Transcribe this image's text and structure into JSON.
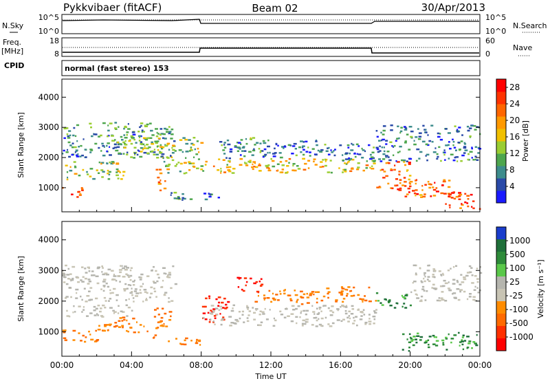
{
  "header": {
    "radar": "Pykkvibaer (fitACF)",
    "beam": "Beam 02",
    "date": "30/Apr/2013"
  },
  "nsky_panel": {
    "left_label": "N.Sky",
    "left_ticks": [
      "10^5",
      "10^0"
    ],
    "right_label": "N.Search",
    "right_ticks": [
      "10^5",
      "10^0"
    ]
  },
  "freq_panel": {
    "left_label_1": "Freq.",
    "left_label_2": "[MHz]",
    "left_ticks": [
      "18",
      "8"
    ],
    "right_label": "Nave",
    "right_ticks": [
      "60",
      "0"
    ]
  },
  "cpid": {
    "label": "CPID",
    "value": "normal (fast stereo) 153"
  },
  "colors": {
    "power_scale": [
      "#1a1aff",
      "#2a4aa8",
      "#3d8c8c",
      "#4ea64e",
      "#9acd32",
      "#f0c000",
      "#ff9900",
      "#ff6600",
      "#ff3300",
      "#ff0000"
    ],
    "velocity_scale": [
      "#1a3dcc",
      "#1f6f3a",
      "#2e8b3a",
      "#5ac84a",
      "#b5b5ae",
      "#c8c4b4",
      "#ff8c00",
      "#ff6a00",
      "#ff3000",
      "#ff0000"
    ]
  },
  "chart_data": [
    {
      "type": "heatmap",
      "name": "power",
      "ylabel": "Slant Range [km]",
      "yticks": [
        "1000",
        "2000",
        "3000",
        "4000"
      ],
      "ylim": [
        200,
        4600
      ],
      "xlim": [
        0,
        24
      ],
      "xticks": [
        "00:00",
        "04:00",
        "08:00",
        "12:00",
        "16:00",
        "20:00",
        "00:00"
      ],
      "colorbar": {
        "label": "Power [dB]",
        "ticks": [
          "4",
          "8",
          "12",
          "16",
          "20",
          "24",
          "28"
        ],
        "range": [
          0,
          30
        ]
      },
      "regions": [
        {
          "t0": 0.0,
          "t1": 1.2,
          "r0": 700,
          "r1": 1050,
          "level": 0.85
        },
        {
          "t0": 0.0,
          "t1": 3.5,
          "r0": 1300,
          "r1": 1900,
          "level": 0.45
        },
        {
          "t0": 0.0,
          "t1": 6.5,
          "r0": 2000,
          "r1": 3200,
          "level": 0.25
        },
        {
          "t0": 3.0,
          "t1": 5.5,
          "r0": 2100,
          "r1": 2800,
          "level": 0.35
        },
        {
          "t0": 5.3,
          "t1": 5.9,
          "r0": 900,
          "r1": 1700,
          "level": 0.8
        },
        {
          "t0": 5.5,
          "t1": 8.0,
          "r0": 1500,
          "r1": 2700,
          "level": 0.45
        },
        {
          "t0": 6.0,
          "t1": 9.0,
          "r0": 600,
          "r1": 900,
          "level": 0.2
        },
        {
          "t0": 8.0,
          "t1": 18.0,
          "r0": 1500,
          "r1": 2000,
          "level": 0.55
        },
        {
          "t0": 10.0,
          "t1": 11.5,
          "r0": 2200,
          "r1": 2700,
          "level": 0.3
        },
        {
          "t0": 9.0,
          "t1": 15.0,
          "r0": 2000,
          "r1": 2600,
          "level": 0.18
        },
        {
          "t0": 15.0,
          "t1": 18.5,
          "r0": 1900,
          "r1": 2500,
          "level": 0.2
        },
        {
          "t0": 18.0,
          "t1": 20.0,
          "r0": 1000,
          "r1": 1900,
          "level": 0.75
        },
        {
          "t0": 18.0,
          "t1": 24.0,
          "r0": 1900,
          "r1": 3100,
          "level": 0.2
        },
        {
          "t0": 19.0,
          "t1": 22.5,
          "r0": 700,
          "r1": 1300,
          "level": 0.8
        },
        {
          "t0": 22.0,
          "t1": 24.0,
          "r0": 300,
          "r1": 900,
          "level": 0.85
        }
      ]
    },
    {
      "type": "heatmap",
      "name": "velocity",
      "ylabel": "Slant Range [km]",
      "yticks": [
        "1000",
        "2000",
        "3000",
        "4000"
      ],
      "ylim": [
        200,
        4600
      ],
      "xlim": [
        0,
        24
      ],
      "xticks": [
        "00:00",
        "04:00",
        "08:00",
        "12:00",
        "16:00",
        "20:00",
        "00:00"
      ],
      "xlabel": "Time UT",
      "colorbar": {
        "label": "Velocity [m s⁻¹]",
        "ticks": [
          "1000",
          "500",
          "100",
          "25",
          "-25",
          "-100",
          "-500",
          "-1000"
        ]
      },
      "regions": [
        {
          "t0": 0.0,
          "t1": 6.5,
          "r0": 2000,
          "r1": 3200,
          "cls": "grey"
        },
        {
          "t0": 0.0,
          "t1": 2.0,
          "r0": 700,
          "r1": 1100,
          "cls": "orange"
        },
        {
          "t0": 2.0,
          "t1": 5.0,
          "r0": 1000,
          "r1": 1500,
          "cls": "orange"
        },
        {
          "t0": 0.0,
          "t1": 4.0,
          "r0": 1500,
          "r1": 1900,
          "cls": "grey"
        },
        {
          "t0": 5.2,
          "t1": 6.2,
          "r0": 800,
          "r1": 1800,
          "cls": "orange"
        },
        {
          "t0": 6.0,
          "t1": 8.0,
          "r0": 600,
          "r1": 900,
          "cls": "orange"
        },
        {
          "t0": 8.0,
          "t1": 9.5,
          "r0": 1300,
          "r1": 2200,
          "cls": "red"
        },
        {
          "t0": 10.0,
          "t1": 11.5,
          "r0": 2300,
          "r1": 2800,
          "cls": "red"
        },
        {
          "t0": 8.0,
          "t1": 18.0,
          "r0": 1200,
          "r1": 1900,
          "cls": "grey"
        },
        {
          "t0": 11.0,
          "t1": 15.0,
          "r0": 1900,
          "r1": 2400,
          "cls": "orange"
        },
        {
          "t0": 15.0,
          "t1": 18.0,
          "r0": 2000,
          "r1": 2500,
          "cls": "orange"
        },
        {
          "t0": 18.0,
          "t1": 20.0,
          "r0": 1800,
          "r1": 2300,
          "cls": "green"
        },
        {
          "t0": 19.5,
          "t1": 24.0,
          "r0": 400,
          "r1": 1000,
          "cls": "green"
        },
        {
          "t0": 20.0,
          "t1": 24.0,
          "r0": 2000,
          "r1": 3200,
          "cls": "grey"
        }
      ]
    }
  ]
}
